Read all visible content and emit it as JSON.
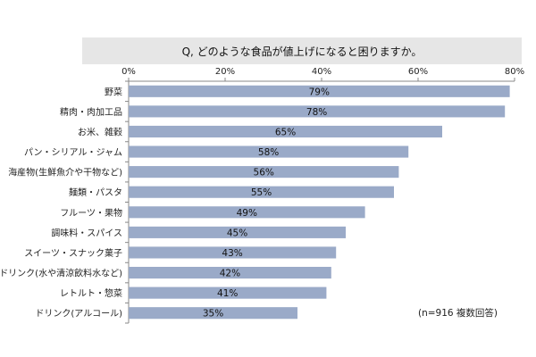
{
  "title": "Q, どのような食品が値上げになると困りますか。",
  "note": "(n=916 複数回答)",
  "chart_data": {
    "type": "bar",
    "orientation": "horizontal",
    "title": "Q, どのような食品が値上げになると困りますか。",
    "xlabel": "",
    "ylabel": "",
    "xlim": [
      0,
      80
    ],
    "x_ticks": [
      0,
      20,
      40,
      60,
      80
    ],
    "tick_suffix": "%",
    "bar_color": "#9aaac8",
    "grid": false,
    "categories": [
      "野菜",
      "精肉・肉加工品",
      "お米、雑穀",
      "パン・シリアル・ジャム",
      "海産物(生鮮魚介や干物など)",
      "麺類・パスタ",
      "フルーツ・果物",
      "調味料・スパイス",
      "スイーツ・スナック菓子",
      "ドリンク(水や清涼飲料水など)",
      "レトルト・惣菜",
      "ドリンク(アルコール)"
    ],
    "values": [
      79,
      78,
      65,
      58,
      56,
      55,
      49,
      45,
      43,
      42,
      41,
      35
    ],
    "value_labels": [
      "79%",
      "78%",
      "65%",
      "58%",
      "56%",
      "55%",
      "49%",
      "45%",
      "43%",
      "42%",
      "41%",
      "35%"
    ],
    "annotation": "(n=916 複数回答)"
  }
}
